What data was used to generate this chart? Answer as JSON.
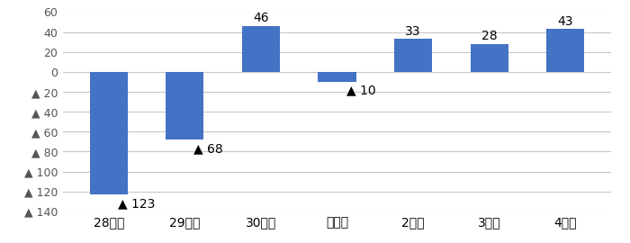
{
  "categories": [
    "28年度",
    "29年度",
    "30年度",
    "元年度",
    "2年度",
    "3年度",
    "4年度"
  ],
  "values": [
    -123,
    -68,
    46,
    -10,
    33,
    28,
    43
  ],
  "bar_color": "#4472C4",
  "ylim": [
    -140,
    60
  ],
  "yticks": [
    60,
    40,
    20,
    0,
    -20,
    -40,
    -60,
    -80,
    -100,
    -120,
    -140
  ],
  "ytick_labels": [
    "60",
    "40",
    "20",
    "0",
    "▲ 20",
    "▲ 40",
    "▲ 60",
    "▲ 80",
    "▲ 100",
    "▲ 120",
    "▲ 140"
  ],
  "label_values": [
    "123",
    "68",
    "46",
    "10",
    "33",
    "28",
    "43"
  ],
  "label_signs": [
    -1,
    -1,
    1,
    -1,
    1,
    1,
    1
  ],
  "figsize": [
    7.0,
    2.7
  ],
  "dpi": 100,
  "background_color": "#FFFFFF",
  "grid_color": "#C8C8C8",
  "bar_width": 0.5,
  "font_size_tick": 9,
  "font_size_label": 10
}
